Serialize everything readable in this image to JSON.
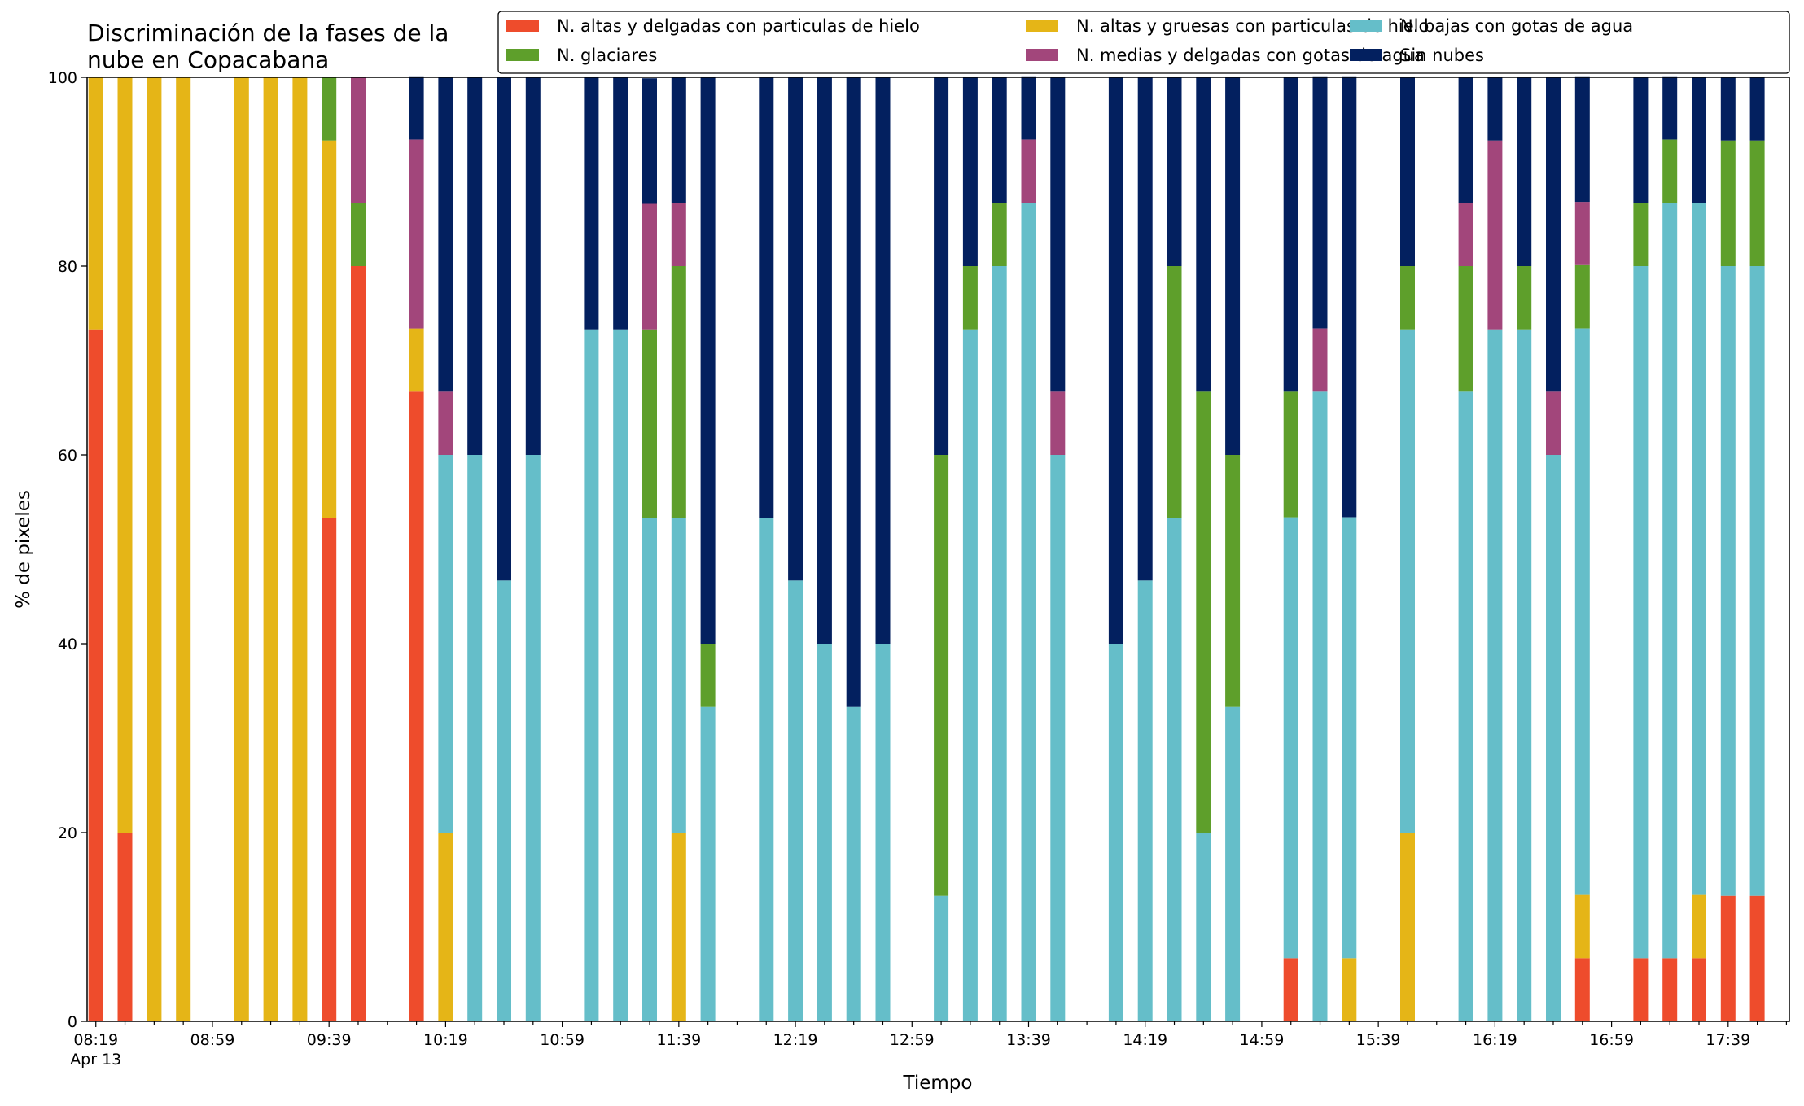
{
  "chart_data": {
    "type": "bar",
    "stacked": true,
    "title": "Discriminación de la fases de la nube en Copacabana",
    "title_lines": [
      "Discriminación de la fases de la",
      "nube en Copacabana"
    ],
    "xlabel": "Tiempo",
    "ylabel": "% de pixeles",
    "ylim": [
      0,
      100
    ],
    "yticks": [
      0,
      20,
      40,
      60,
      80,
      100
    ],
    "xlim_minutes_after_0819": [
      -3,
      581
    ],
    "xtick_labels": [
      "08:19",
      "08:59",
      "09:39",
      "10:19",
      "10:59",
      "11:39",
      "12:19",
      "12:59",
      "13:39",
      "14:19",
      "14:59",
      "15:39",
      "16:19",
      "16:59",
      "17:39"
    ],
    "xtick_sublabel": "Apr 13",
    "minor_tick_interval_minutes": 10,
    "grid": false,
    "legend_position": "top-right",
    "legend_columns": 3,
    "x": [
      "08:19",
      "08:29",
      "08:39",
      "08:49",
      "09:09",
      "09:19",
      "09:29",
      "09:39",
      "09:49",
      "10:09",
      "10:19",
      "10:29",
      "10:39",
      "10:49",
      "11:09",
      "11:19",
      "11:29",
      "11:39",
      "11:49",
      "12:09",
      "12:19",
      "12:29",
      "12:39",
      "12:49",
      "13:09",
      "13:19",
      "13:29",
      "13:39",
      "13:49",
      "14:09",
      "14:19",
      "14:29",
      "14:39",
      "14:49",
      "15:09",
      "15:19",
      "15:29",
      "15:49",
      "16:09",
      "16:19",
      "16:29",
      "16:39",
      "16:49",
      "17:09",
      "17:19",
      "17:29",
      "17:39",
      "17:49"
    ],
    "series": [
      {
        "name": "N. altas y delgadas con particulas de hielo",
        "color": "#ee4c2c",
        "values": [
          73.3,
          20,
          0,
          0,
          0,
          0,
          0,
          53.3,
          80,
          66.7,
          0,
          0,
          0,
          0,
          0,
          0,
          0,
          0,
          0,
          0,
          0,
          0,
          0,
          0,
          0,
          0,
          0,
          0,
          0,
          0,
          0,
          0,
          0,
          0,
          6.7,
          0,
          0,
          0,
          0,
          0,
          0,
          0,
          6.7,
          6.7,
          6.7,
          6.7,
          13.3,
          13.3
        ]
      },
      {
        "name": "N. altas y gruesas con particulas de hielo",
        "color": "#e5b517",
        "values": [
          26.7,
          80,
          100,
          100,
          100,
          100,
          100,
          40,
          0,
          6.7,
          20,
          0,
          0,
          0,
          0,
          0,
          0,
          20,
          0,
          0,
          0,
          0,
          0,
          0,
          0,
          0,
          0,
          0,
          0,
          0,
          0,
          0,
          0,
          0,
          0,
          0,
          6.7,
          20,
          0,
          0,
          0,
          0,
          6.7,
          0,
          0,
          6.7,
          0,
          0
        ]
      },
      {
        "name": "N. bajas con gotas de agua",
        "color": "#65bec9",
        "values": [
          0,
          0,
          0,
          0,
          0,
          0,
          0,
          0,
          0,
          0,
          40,
          60,
          46.7,
          60,
          73.3,
          73.3,
          53.3,
          33.3,
          33.3,
          53.3,
          46.7,
          40,
          33.3,
          40,
          13.3,
          73.3,
          80,
          86.7,
          60,
          40,
          46.7,
          53.3,
          20,
          33.3,
          46.7,
          66.7,
          46.7,
          53.3,
          66.7,
          73.3,
          73.3,
          60,
          60,
          73.3,
          80,
          73.3,
          66.7,
          66.7
        ]
      },
      {
        "name": "N. glaciares",
        "color": "#5e9f2b",
        "values": [
          0,
          0,
          0,
          0,
          0,
          0,
          0,
          6.7,
          6.7,
          0,
          0,
          0,
          0,
          0,
          0,
          0,
          20,
          26.7,
          6.7,
          0,
          0,
          0,
          0,
          0,
          46.7,
          6.7,
          6.7,
          0,
          0,
          0,
          0,
          26.7,
          46.7,
          26.7,
          13.3,
          0,
          0,
          6.7,
          13.3,
          0,
          6.7,
          0,
          6.7,
          6.7,
          6.7,
          0,
          13.3,
          13.3
        ]
      },
      {
        "name": "N. medias y delgadas con gotas de agua",
        "color": "#a2467b",
        "values": [
          0,
          0,
          0,
          0,
          0,
          0,
          0,
          0,
          13.3,
          20,
          6.7,
          0,
          0,
          0,
          0,
          0,
          13.3,
          6.7,
          0,
          0,
          0,
          0,
          0,
          0,
          0,
          0,
          0,
          6.7,
          6.7,
          0,
          0,
          0,
          0,
          0,
          0,
          6.7,
          0,
          0,
          6.7,
          20,
          0,
          6.7,
          6.7,
          0,
          0,
          0,
          0,
          0
        ]
      },
      {
        "name": "Sin nubes",
        "color": "#03205f",
        "values": [
          0,
          0,
          0,
          0,
          0,
          0,
          0,
          0,
          0,
          6.7,
          33.3,
          40,
          53.3,
          40,
          26.7,
          26.7,
          13.3,
          13.3,
          60,
          46.7,
          53.3,
          60,
          66.7,
          60,
          40,
          20,
          13.3,
          6.7,
          33.3,
          60,
          53.3,
          20,
          33.3,
          40,
          33.3,
          26.7,
          46.7,
          20,
          13.3,
          6.7,
          20,
          33.3,
          13.3,
          13.3,
          6.7,
          13.3,
          6.7,
          6.7
        ]
      }
    ]
  }
}
